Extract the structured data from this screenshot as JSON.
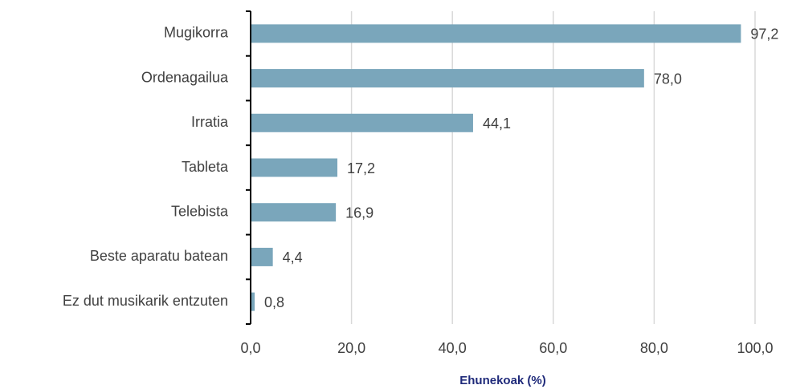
{
  "chart_data": {
    "type": "bar",
    "orientation": "horizontal",
    "x_label": "Ehunekoak (%)",
    "categories": [
      "Mugikorra",
      "Ordenagailua",
      "Irratia",
      "Tableta",
      "Telebista",
      "Beste aparatu batean",
      "Ez dut musikarik entzuten"
    ],
    "values": [
      97.2,
      78.0,
      44.1,
      17.2,
      16.9,
      4.4,
      0.8
    ],
    "value_labels": [
      "97,2",
      "78,0",
      "44,1",
      "17,2",
      "16,9",
      "4,4",
      "0,8"
    ],
    "color": "#7aa6bb",
    "xlim": [
      0,
      100
    ],
    "xticks": [
      {
        "value": 0,
        "label": "0,0"
      },
      {
        "value": 20,
        "label": "20,0"
      },
      {
        "value": 40,
        "label": "40,0"
      },
      {
        "value": 60,
        "label": "60,0"
      },
      {
        "value": 80,
        "label": "80,0"
      },
      {
        "value": 100,
        "label": "100,0"
      }
    ],
    "grid": true
  }
}
